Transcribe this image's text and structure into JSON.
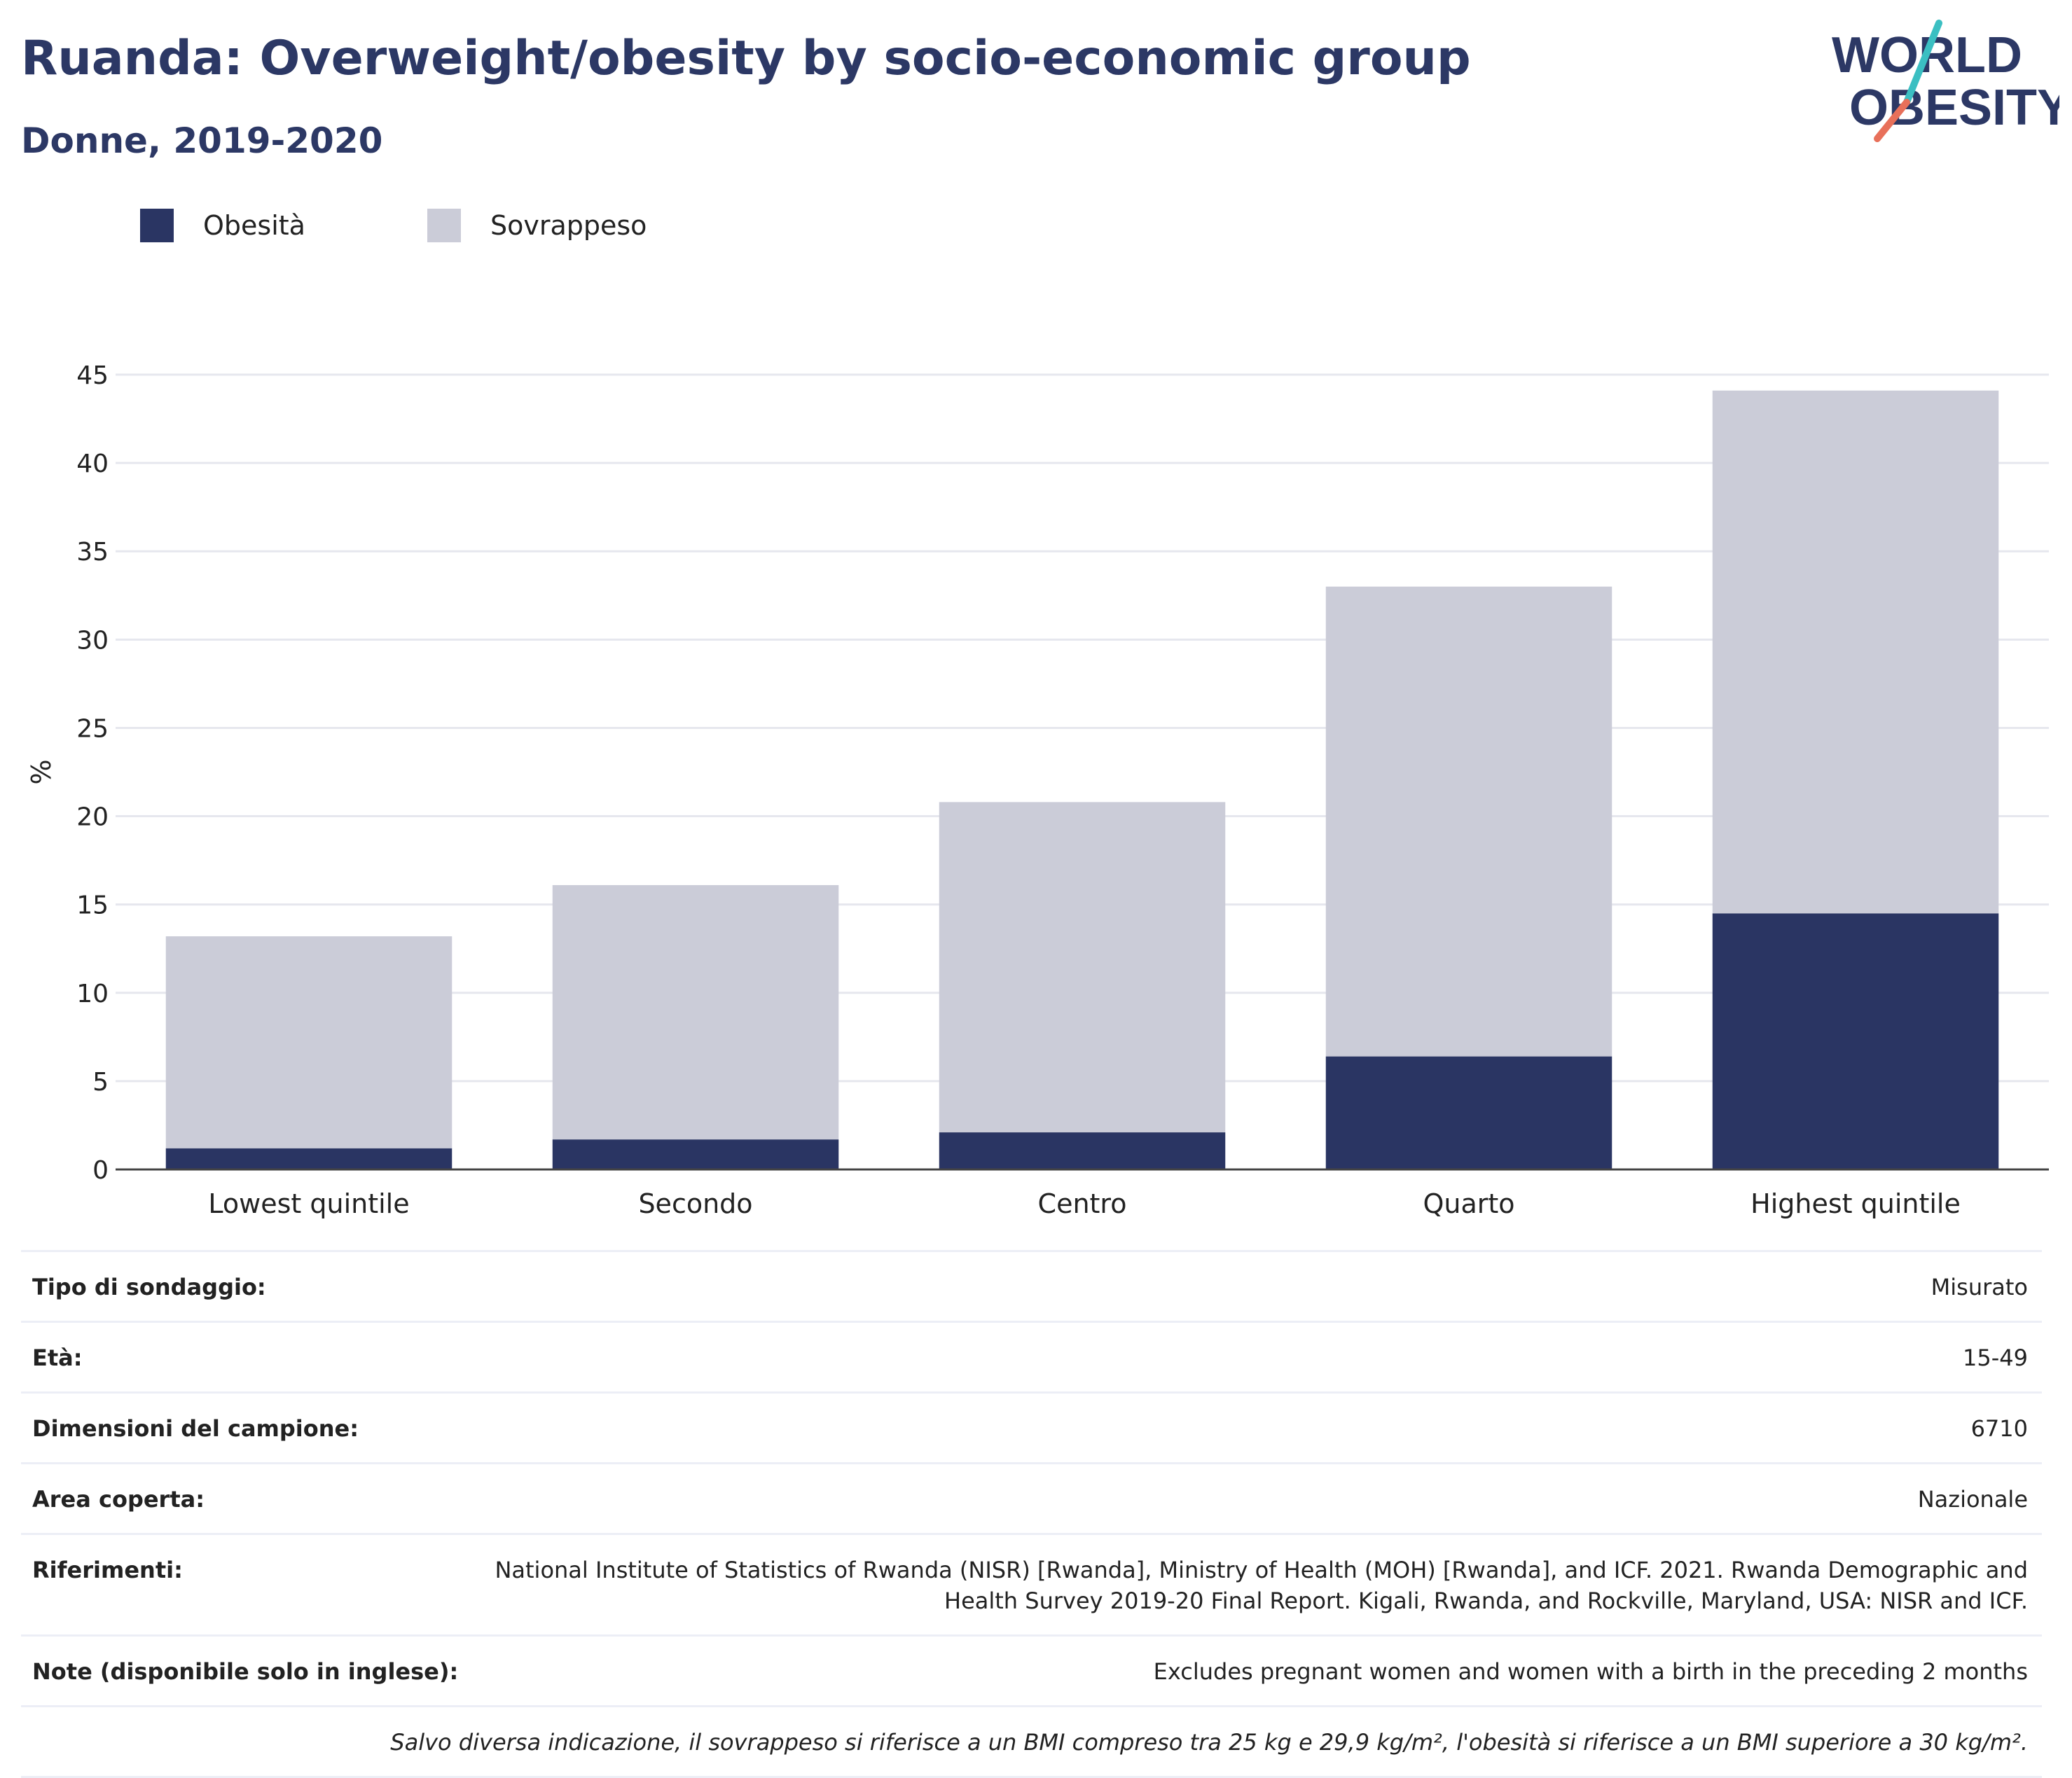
{
  "header": {
    "title": "Ruanda: Overweight/obesity by socio-economic group",
    "subtitle": "Donne, 2019-2020"
  },
  "logo": {
    "line1": "WORLD",
    "line2": "OBESITY",
    "colors": {
      "text": "#2c3865",
      "slash_top": "#3bbfc2",
      "slash_bottom": "#e8705a"
    }
  },
  "legend": [
    {
      "label": "Obesità",
      "color": "#2a3563"
    },
    {
      "label": "Sovrappeso",
      "color": "#cbccd8"
    }
  ],
  "chart_data": {
    "type": "bar",
    "stacked": true,
    "categories": [
      "Lowest quintile",
      "Secondo",
      "Centro",
      "Quarto",
      "Highest quintile"
    ],
    "series": [
      {
        "name": "Obesità",
        "color": "#2a3563",
        "values": [
          1.2,
          1.7,
          2.1,
          6.4,
          14.5
        ]
      },
      {
        "name": "Sovrappeso",
        "color": "#cbccd8",
        "values": [
          12.0,
          14.4,
          18.7,
          26.6,
          29.6
        ]
      }
    ],
    "ylabel": "%",
    "ylim": [
      0,
      45
    ],
    "yticks": [
      0,
      5,
      10,
      15,
      20,
      25,
      30,
      35,
      40,
      45
    ],
    "grid": true
  },
  "info": {
    "rows": [
      {
        "key": "Tipo di sondaggio:",
        "value": "Misurato"
      },
      {
        "key": "Età:",
        "value": "15-49"
      },
      {
        "key": "Dimensioni del campione:",
        "value": "6710"
      },
      {
        "key": "Area coperta:",
        "value": "Nazionale"
      },
      {
        "key": "Riferimenti:",
        "value": "National Institute of Statistics of Rwanda (NISR) [Rwanda], Ministry of Health (MOH) [Rwanda], and ICF. 2021. Rwanda Demographic and Health Survey 2019-20 Final Report. Kigali, Rwanda, and Rockville, Maryland, USA: NISR and ICF."
      },
      {
        "key": "Note (disponibile solo in inglese):",
        "value": "Excludes pregnant women and women with a birth in the preceding 2 months"
      }
    ],
    "footnote": "Salvo diversa indicazione, il sovrappeso si riferisce a un BMI compreso tra 25 kg e 29,9 kg/m², l'obesità si riferisce a un BMI superiore a 30 kg/m²."
  }
}
